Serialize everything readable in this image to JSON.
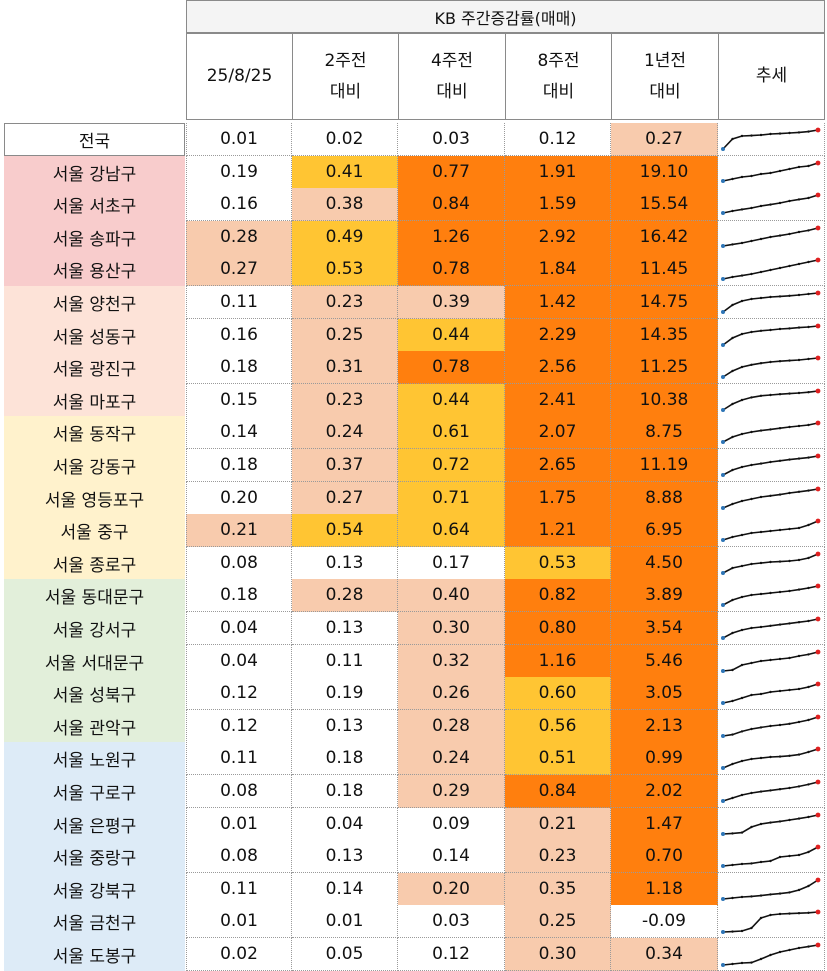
{
  "title": "KB 주간증감률(매매)",
  "headers": [
    "25/8/25",
    "2주전\n대비",
    "4주전\n대비",
    "8주전\n대비",
    "1년전\n대비",
    "추세"
  ],
  "colors": {
    "bg_none": "#ffffff",
    "bg_light": "#f8cbad",
    "bg_yellow": "#ffc533",
    "bg_orange": "#ff7f0e",
    "group_pink": "#f8cccc",
    "group_peach": "#fde3d8",
    "group_cream": "#fff2cc",
    "group_green": "#e2efda",
    "group_blue": "#ddebf7"
  },
  "rows": [
    {
      "region": "전국",
      "group": "national",
      "values": [
        "0.01",
        "0.02",
        "0.03",
        "0.12",
        "0.27"
      ],
      "fills": [
        "none",
        "none",
        "none",
        "none",
        "light"
      ],
      "trend": [
        0.05,
        0.55,
        0.7,
        0.72,
        0.75,
        0.8,
        0.82,
        0.85,
        0.88,
        0.92,
        1.0
      ]
    },
    {
      "region": "서울 강남구",
      "group": "pink",
      "values": [
        "0.19",
        "0.41",
        "0.77",
        "1.91",
        "19.10"
      ],
      "fills": [
        "none",
        "yellow",
        "orange",
        "orange",
        "orange"
      ],
      "trend": [
        0.1,
        0.2,
        0.3,
        0.35,
        0.45,
        0.5,
        0.6,
        0.7,
        0.8,
        0.85,
        1.0
      ]
    },
    {
      "region": "서울 서초구",
      "group": "pink",
      "values": [
        "0.16",
        "0.38",
        "0.84",
        "1.59",
        "15.54"
      ],
      "fills": [
        "none",
        "light",
        "orange",
        "orange",
        "orange"
      ],
      "trend": [
        0.1,
        0.2,
        0.28,
        0.35,
        0.45,
        0.52,
        0.6,
        0.7,
        0.78,
        0.85,
        1.0
      ]
    },
    {
      "region": "서울 송파구",
      "group": "pink",
      "values": [
        "0.28",
        "0.49",
        "1.26",
        "2.92",
        "16.42"
      ],
      "fills": [
        "light",
        "yellow",
        "orange",
        "orange",
        "orange"
      ],
      "trend": [
        0.1,
        0.18,
        0.25,
        0.35,
        0.45,
        0.55,
        0.62,
        0.7,
        0.8,
        0.88,
        1.0
      ]
    },
    {
      "region": "서울 용산구",
      "group": "pink",
      "values": [
        "0.27",
        "0.53",
        "0.78",
        "1.84",
        "11.45"
      ],
      "fills": [
        "light",
        "yellow",
        "orange",
        "orange",
        "orange"
      ],
      "trend": [
        0.05,
        0.15,
        0.22,
        0.3,
        0.4,
        0.5,
        0.6,
        0.7,
        0.8,
        0.9,
        1.0
      ]
    },
    {
      "region": "서울 양천구",
      "group": "peach",
      "values": [
        "0.11",
        "0.23",
        "0.39",
        "1.42",
        "14.75"
      ],
      "fills": [
        "none",
        "light",
        "light",
        "orange",
        "orange"
      ],
      "trend": [
        0.05,
        0.4,
        0.6,
        0.7,
        0.75,
        0.8,
        0.83,
        0.86,
        0.9,
        0.95,
        1.0
      ]
    },
    {
      "region": "서울 성동구",
      "group": "peach",
      "values": [
        "0.16",
        "0.25",
        "0.44",
        "2.29",
        "14.35"
      ],
      "fills": [
        "none",
        "light",
        "yellow",
        "orange",
        "orange"
      ],
      "trend": [
        0.05,
        0.4,
        0.6,
        0.7,
        0.76,
        0.8,
        0.85,
        0.88,
        0.92,
        0.95,
        1.0
      ]
    },
    {
      "region": "서울 광진구",
      "group": "peach",
      "values": [
        "0.18",
        "0.31",
        "0.78",
        "2.56",
        "11.25"
      ],
      "fills": [
        "none",
        "light",
        "orange",
        "orange",
        "orange"
      ],
      "trend": [
        0.05,
        0.35,
        0.55,
        0.66,
        0.74,
        0.8,
        0.84,
        0.87,
        0.9,
        0.95,
        1.0
      ]
    },
    {
      "region": "서울 마포구",
      "group": "peach",
      "values": [
        "0.15",
        "0.23",
        "0.44",
        "2.41",
        "10.38"
      ],
      "fills": [
        "none",
        "light",
        "yellow",
        "orange",
        "orange"
      ],
      "trend": [
        0.05,
        0.35,
        0.55,
        0.68,
        0.76,
        0.8,
        0.84,
        0.87,
        0.9,
        0.94,
        1.0
      ]
    },
    {
      "region": "서울 동작구",
      "group": "cream",
      "values": [
        "0.14",
        "0.24",
        "0.61",
        "2.07",
        "8.75"
      ],
      "fills": [
        "none",
        "light",
        "yellow",
        "orange",
        "orange"
      ],
      "trend": [
        0.05,
        0.3,
        0.45,
        0.55,
        0.62,
        0.68,
        0.74,
        0.8,
        0.85,
        0.9,
        1.0
      ]
    },
    {
      "region": "서울 강동구",
      "group": "cream",
      "values": [
        "0.18",
        "0.37",
        "0.72",
        "2.65",
        "11.19"
      ],
      "fills": [
        "none",
        "light",
        "yellow",
        "orange",
        "orange"
      ],
      "trend": [
        0.05,
        0.3,
        0.45,
        0.55,
        0.62,
        0.7,
        0.76,
        0.82,
        0.87,
        0.92,
        1.0
      ]
    },
    {
      "region": "서울 영등포구",
      "group": "cream",
      "values": [
        "0.20",
        "0.27",
        "0.71",
        "1.75",
        "8.88"
      ],
      "fills": [
        "none",
        "light",
        "yellow",
        "orange",
        "orange"
      ],
      "trend": [
        0.05,
        0.25,
        0.4,
        0.5,
        0.6,
        0.66,
        0.72,
        0.8,
        0.86,
        0.92,
        1.0
      ]
    },
    {
      "region": "서울 중구",
      "group": "cream",
      "values": [
        "0.21",
        "0.54",
        "0.64",
        "1.21",
        "6.95"
      ],
      "fills": [
        "light",
        "yellow",
        "yellow",
        "orange",
        "orange"
      ],
      "trend": [
        0.05,
        0.2,
        0.3,
        0.4,
        0.45,
        0.5,
        0.55,
        0.6,
        0.65,
        0.8,
        1.0
      ]
    },
    {
      "region": "서울 종로구",
      "group": "cream",
      "values": [
        "0.08",
        "0.13",
        "0.17",
        "0.53",
        "4.50"
      ],
      "fills": [
        "none",
        "none",
        "none",
        "yellow",
        "orange"
      ],
      "trend": [
        0.05,
        0.3,
        0.4,
        0.5,
        0.55,
        0.6,
        0.62,
        0.65,
        0.7,
        0.8,
        1.0
      ]
    },
    {
      "region": "서울 동대문구",
      "group": "green",
      "values": [
        "0.18",
        "0.28",
        "0.40",
        "0.82",
        "3.89"
      ],
      "fills": [
        "none",
        "light",
        "light",
        "orange",
        "orange"
      ],
      "trend": [
        0.05,
        0.3,
        0.45,
        0.55,
        0.6,
        0.65,
        0.7,
        0.75,
        0.82,
        0.9,
        1.0
      ]
    },
    {
      "region": "서울 강서구",
      "group": "green",
      "values": [
        "0.04",
        "0.13",
        "0.30",
        "0.80",
        "3.54"
      ],
      "fills": [
        "none",
        "none",
        "light",
        "orange",
        "orange"
      ],
      "trend": [
        0.05,
        0.3,
        0.45,
        0.55,
        0.6,
        0.66,
        0.72,
        0.78,
        0.84,
        0.9,
        1.0
      ]
    },
    {
      "region": "서울 서대문구",
      "group": "green",
      "values": [
        "0.04",
        "0.11",
        "0.32",
        "1.16",
        "5.46"
      ],
      "fills": [
        "none",
        "none",
        "light",
        "orange",
        "orange"
      ],
      "trend": [
        0.05,
        0.1,
        0.35,
        0.45,
        0.55,
        0.6,
        0.65,
        0.7,
        0.8,
        0.88,
        1.0
      ]
    },
    {
      "region": "서울 성북구",
      "group": "green",
      "values": [
        "0.12",
        "0.19",
        "0.26",
        "0.60",
        "3.05"
      ],
      "fills": [
        "none",
        "none",
        "light",
        "yellow",
        "orange"
      ],
      "trend": [
        0.05,
        0.15,
        0.3,
        0.45,
        0.5,
        0.6,
        0.65,
        0.7,
        0.75,
        0.85,
        1.0
      ]
    },
    {
      "region": "서울 관악구",
      "group": "green",
      "values": [
        "0.12",
        "0.13",
        "0.28",
        "0.56",
        "2.13"
      ],
      "fills": [
        "none",
        "none",
        "light",
        "yellow",
        "orange"
      ],
      "trend": [
        0.05,
        0.12,
        0.28,
        0.4,
        0.48,
        0.55,
        0.6,
        0.66,
        0.75,
        0.85,
        1.0
      ]
    },
    {
      "region": "서울 노원구",
      "group": "blue",
      "values": [
        "0.11",
        "0.18",
        "0.24",
        "0.51",
        "0.99"
      ],
      "fills": [
        "none",
        "none",
        "light",
        "yellow",
        "orange"
      ],
      "trend": [
        0.05,
        0.25,
        0.4,
        0.5,
        0.55,
        0.6,
        0.62,
        0.66,
        0.72,
        0.85,
        1.0
      ]
    },
    {
      "region": "서울 구로구",
      "group": "blue",
      "values": [
        "0.08",
        "0.18",
        "0.29",
        "0.84",
        "2.02"
      ],
      "fills": [
        "none",
        "none",
        "light",
        "orange",
        "orange"
      ],
      "trend": [
        0.05,
        0.2,
        0.35,
        0.45,
        0.52,
        0.58,
        0.64,
        0.7,
        0.78,
        0.88,
        1.0
      ]
    },
    {
      "region": "서울 은평구",
      "group": "blue",
      "values": [
        "0.01",
        "0.04",
        "0.09",
        "0.21",
        "1.47"
      ],
      "fills": [
        "none",
        "none",
        "none",
        "light",
        "orange"
      ],
      "trend": [
        0.05,
        0.08,
        0.12,
        0.4,
        0.55,
        0.62,
        0.68,
        0.75,
        0.82,
        0.9,
        1.0
      ]
    },
    {
      "region": "서울 중랑구",
      "group": "blue",
      "values": [
        "0.08",
        "0.13",
        "0.14",
        "0.23",
        "0.70"
      ],
      "fills": [
        "none",
        "none",
        "none",
        "light",
        "orange"
      ],
      "trend": [
        0.05,
        0.1,
        0.15,
        0.18,
        0.25,
        0.3,
        0.5,
        0.55,
        0.6,
        0.75,
        1.0
      ]
    },
    {
      "region": "서울 강북구",
      "group": "blue",
      "values": [
        "0.11",
        "0.14",
        "0.20",
        "0.35",
        "1.18"
      ],
      "fills": [
        "none",
        "none",
        "light",
        "light",
        "orange"
      ],
      "trend": [
        0.05,
        0.1,
        0.15,
        0.18,
        0.22,
        0.28,
        0.32,
        0.38,
        0.5,
        0.7,
        1.0
      ]
    },
    {
      "region": "서울 금천구",
      "group": "blue",
      "values": [
        "0.01",
        "0.01",
        "0.03",
        "0.25",
        "-0.09"
      ],
      "fills": [
        "none",
        "none",
        "none",
        "light",
        "none"
      ],
      "trend": [
        0.0,
        0.02,
        0.05,
        0.2,
        0.7,
        0.85,
        0.9,
        0.92,
        0.94,
        0.96,
        1.0
      ]
    },
    {
      "region": "서울 도봉구",
      "group": "blue",
      "values": [
        "0.02",
        "0.05",
        "0.12",
        "0.30",
        "0.34"
      ],
      "fills": [
        "none",
        "none",
        "none",
        "light",
        "light"
      ],
      "trend": [
        0.0,
        0.05,
        0.1,
        0.12,
        0.3,
        0.5,
        0.65,
        0.75,
        0.85,
        0.92,
        1.0
      ]
    }
  ]
}
